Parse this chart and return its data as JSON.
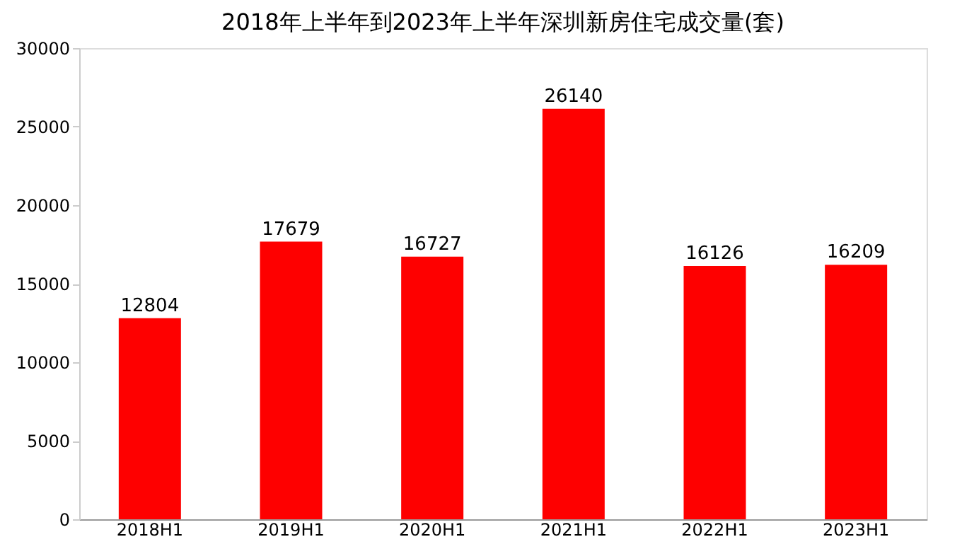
{
  "chart_data": {
    "type": "bar",
    "title": "2018年上半年到2023年上半年深圳新房住宅成交量(套)",
    "categories": [
      "2018H1",
      "2019H1",
      "2020H1",
      "2021H1",
      "2022H1",
      "2023H1"
    ],
    "values": [
      12804,
      17679,
      16727,
      26140,
      16126,
      16209
    ],
    "color": "#fe0000",
    "ylim": [
      0,
      30000
    ],
    "yticks": [
      0,
      5000,
      10000,
      15000,
      20000,
      25000,
      30000
    ],
    "grid": false,
    "data_labels": true
  }
}
